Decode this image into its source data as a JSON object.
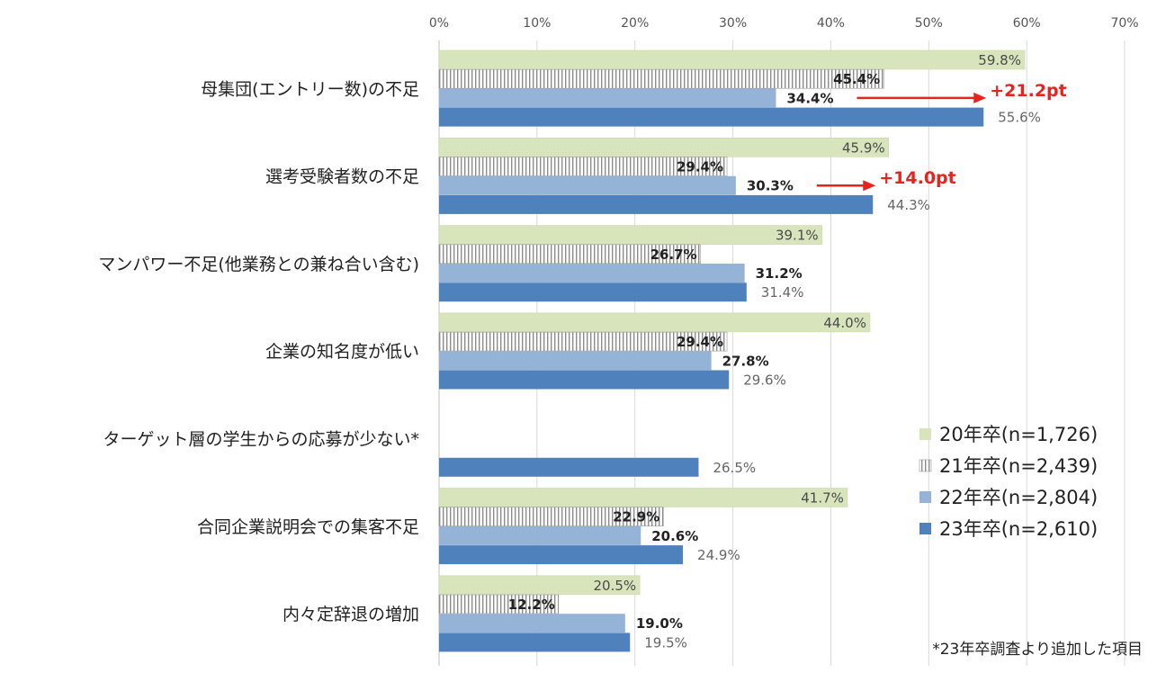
{
  "chart_data": {
    "type": "bar",
    "orientation": "horizontal",
    "categories": [
      "母集団(エントリー数)の不足",
      "選考受験者数の不足",
      "マンパワー不足(他業務との兼ね合い含む)",
      "企業の知名度が低い",
      "ターゲット層の学生からの応募が少ない*",
      "合同企業説明会での集客不足",
      "内々定辞退の増加"
    ],
    "series": [
      {
        "name": "20年卒(n=1,726)",
        "values": [
          59.8,
          45.9,
          39.1,
          44.0,
          null,
          41.7,
          20.5
        ],
        "labels": [
          "59.8%",
          "45.9%",
          "39.1%",
          "44.0%",
          "",
          "41.7%",
          "20.5%"
        ],
        "color": "#d8e4bc"
      },
      {
        "name": "21年卒(n=2,439)",
        "values": [
          45.4,
          29.4,
          26.7,
          29.4,
          null,
          22.9,
          12.2
        ],
        "labels": [
          "45.4%",
          "29.4%",
          "26.7%",
          "29.4%",
          "",
          "22.9%",
          "12.2%"
        ],
        "color": "#9a9a9a"
      },
      {
        "name": "22年卒(n=2,804)",
        "values": [
          34.4,
          30.3,
          31.2,
          27.8,
          null,
          20.6,
          19.0
        ],
        "labels": [
          "34.4%",
          "30.3%",
          "31.2%",
          "27.8%",
          "",
          "20.6%",
          "19.0%"
        ],
        "color": "#95b3d7"
      },
      {
        "name": "23年卒(n=2,610)",
        "values": [
          55.6,
          44.3,
          31.4,
          29.6,
          26.5,
          24.9,
          19.5
        ],
        "labels": [
          "55.6%",
          "44.3%",
          "31.4%",
          "29.6%",
          "26.5%",
          "24.9%",
          "19.5%"
        ],
        "color": "#4f81bd"
      }
    ],
    "xlim": [
      0,
      70
    ],
    "x_ticks": [
      "0%",
      "10%",
      "20%",
      "30%",
      "40%",
      "50%",
      "60%",
      "70%"
    ],
    "annotations": [
      {
        "category_index": 0,
        "text": "+21.2pt"
      },
      {
        "category_index": 1,
        "text": "+14.0pt"
      }
    ],
    "legend_position": "right",
    "grid": "vertical",
    "note": "*23年卒調査より追加した項目",
    "accent_color": "#e8231e"
  }
}
